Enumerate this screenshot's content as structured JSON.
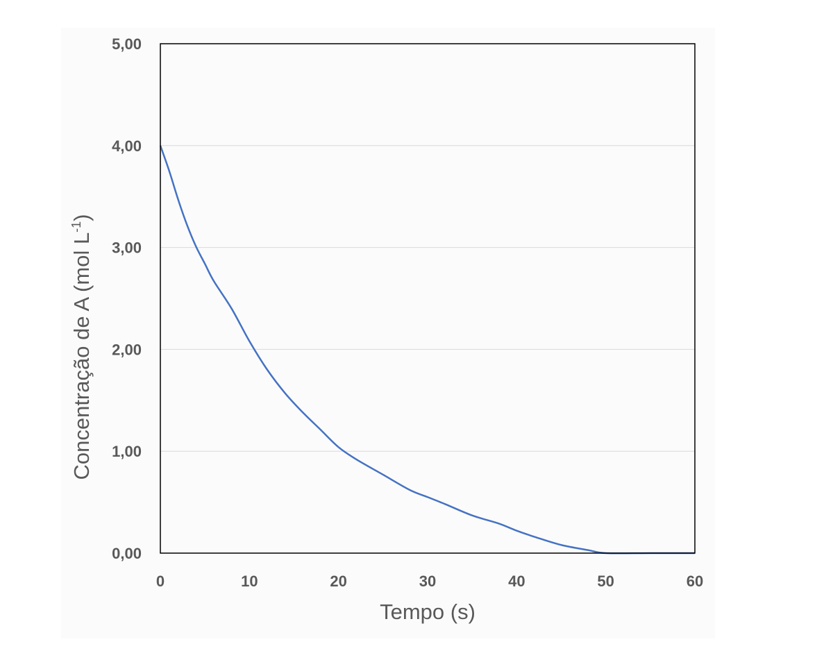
{
  "chart_data": {
    "type": "line",
    "title": "",
    "xlabel": "Tempo (s)",
    "ylabel_main": "Concentração de A (mol L",
    "ylabel_sup": "-1",
    "ylabel_close": ")",
    "xlim": [
      0,
      60
    ],
    "ylim": [
      0,
      5
    ],
    "x_ticks": [
      0,
      10,
      20,
      30,
      40,
      50,
      60
    ],
    "x_tick_labels": [
      "0",
      "10",
      "20",
      "30",
      "40",
      "50",
      "60"
    ],
    "y_ticks": [
      0,
      1,
      2,
      3,
      4,
      5
    ],
    "y_tick_labels": [
      "0,00",
      "1,00",
      "2,00",
      "3,00",
      "4,00",
      "5,00"
    ],
    "grid": true,
    "colors": {
      "line": "#4472c4",
      "grid": "#d9d9d9",
      "frame": "#000000"
    },
    "series": [
      {
        "name": "Concentração de A",
        "x": [
          0,
          1,
          2,
          3,
          4,
          5,
          6,
          8,
          10,
          12,
          14,
          16,
          18,
          20,
          22,
          25,
          28,
          30,
          32,
          35,
          38,
          40,
          42,
          45,
          48,
          50,
          55,
          60
        ],
        "values": [
          4.0,
          3.75,
          3.47,
          3.22,
          3.01,
          2.84,
          2.67,
          2.4,
          2.08,
          1.8,
          1.57,
          1.38,
          1.21,
          1.04,
          0.92,
          0.77,
          0.62,
          0.55,
          0.48,
          0.37,
          0.29,
          0.22,
          0.16,
          0.08,
          0.03,
          0.0,
          0.0,
          0.0
        ]
      }
    ]
  }
}
